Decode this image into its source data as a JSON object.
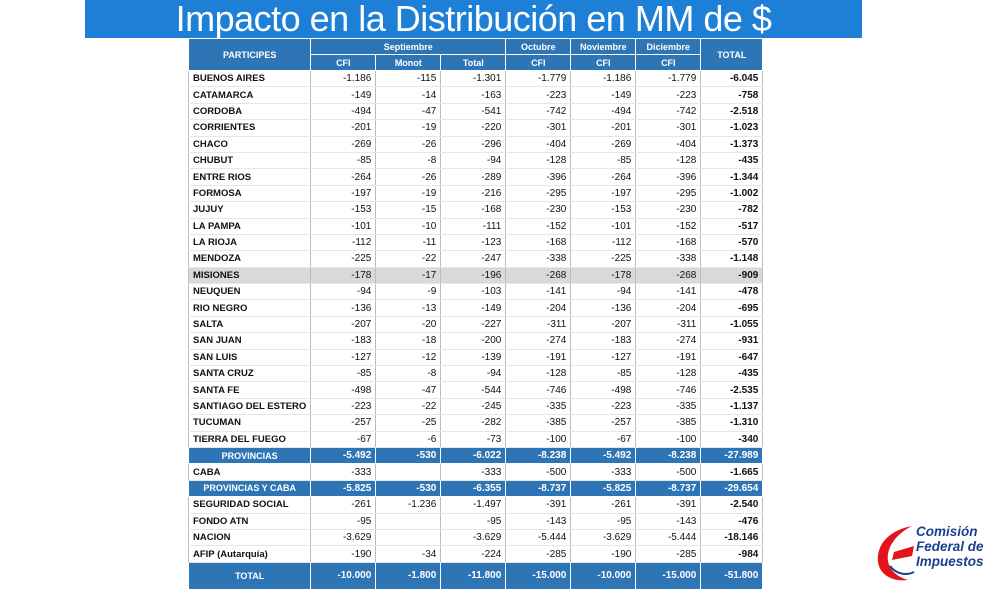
{
  "title": "Impacto en la Distribución en MM de $",
  "table": {
    "header": {
      "participes": "PARTICIPES",
      "months": [
        {
          "name": "Septiembre",
          "columns": [
            "CFI",
            "Monot",
            "Total"
          ]
        },
        {
          "name": "Octubre",
          "columns": [
            "CFI"
          ]
        },
        {
          "name": "Noviembre",
          "columns": [
            "CFI"
          ]
        },
        {
          "name": "Diciembre",
          "columns": [
            "CFI"
          ]
        }
      ],
      "total": "TOTAL"
    },
    "rows": [
      {
        "label": "BUENOS AIRES",
        "values": [
          "-1.186",
          "-115",
          "-1.301",
          "-1.779",
          "-1.186",
          "-1.779",
          "-6.045"
        ]
      },
      {
        "label": "CATAMARCA",
        "values": [
          "-149",
          "-14",
          "-163",
          "-223",
          "-149",
          "-223",
          "-758"
        ]
      },
      {
        "label": "CORDOBA",
        "values": [
          "-494",
          "-47",
          "-541",
          "-742",
          "-494",
          "-742",
          "-2.518"
        ]
      },
      {
        "label": "CORRIENTES",
        "values": [
          "-201",
          "-19",
          "-220",
          "-301",
          "-201",
          "-301",
          "-1.023"
        ]
      },
      {
        "label": "CHACO",
        "values": [
          "-269",
          "-26",
          "-296",
          "-404",
          "-269",
          "-404",
          "-1.373"
        ]
      },
      {
        "label": "CHUBUT",
        "values": [
          "-85",
          "-8",
          "-94",
          "-128",
          "-85",
          "-128",
          "-435"
        ]
      },
      {
        "label": "ENTRE RIOS",
        "values": [
          "-264",
          "-26",
          "-289",
          "-396",
          "-264",
          "-396",
          "-1.344"
        ]
      },
      {
        "label": "FORMOSA",
        "values": [
          "-197",
          "-19",
          "-216",
          "-295",
          "-197",
          "-295",
          "-1.002"
        ]
      },
      {
        "label": "JUJUY",
        "values": [
          "-153",
          "-15",
          "-168",
          "-230",
          "-153",
          "-230",
          "-782"
        ]
      },
      {
        "label": "LA PAMPA",
        "values": [
          "-101",
          "-10",
          "-111",
          "-152",
          "-101",
          "-152",
          "-517"
        ]
      },
      {
        "label": "LA RIOJA",
        "values": [
          "-112",
          "-11",
          "-123",
          "-168",
          "-112",
          "-168",
          "-570"
        ]
      },
      {
        "label": "MENDOZA",
        "values": [
          "-225",
          "-22",
          "-247",
          "-338",
          "-225",
          "-338",
          "-1.148"
        ]
      },
      {
        "label": "MISIONES",
        "values": [
          "-178",
          "-17",
          "-196",
          "-268",
          "-178",
          "-268",
          "-909"
        ]
      },
      {
        "label": "NEUQUEN",
        "values": [
          "-94",
          "-9",
          "-103",
          "-141",
          "-94",
          "-141",
          "-478"
        ]
      },
      {
        "label": "RIO NEGRO",
        "values": [
          "-136",
          "-13",
          "-149",
          "-204",
          "-136",
          "-204",
          "-695"
        ]
      },
      {
        "label": "SALTA",
        "values": [
          "-207",
          "-20",
          "-227",
          "-311",
          "-207",
          "-311",
          "-1.055"
        ]
      },
      {
        "label": "SAN JUAN",
        "values": [
          "-183",
          "-18",
          "-200",
          "-274",
          "-183",
          "-274",
          "-931"
        ]
      },
      {
        "label": "SAN LUIS",
        "values": [
          "-127",
          "-12",
          "-139",
          "-191",
          "-127",
          "-191",
          "-647"
        ]
      },
      {
        "label": "SANTA CRUZ",
        "values": [
          "-85",
          "-8",
          "-94",
          "-128",
          "-85",
          "-128",
          "-435"
        ]
      },
      {
        "label": "SANTA FE",
        "values": [
          "-498",
          "-47",
          "-544",
          "-746",
          "-498",
          "-746",
          "-2.535"
        ]
      },
      {
        "label": "SANTIAGO DEL ESTERO",
        "values": [
          "-223",
          "-22",
          "-245",
          "-335",
          "-223",
          "-335",
          "-1.137"
        ]
      },
      {
        "label": "TUCUMAN",
        "values": [
          "-257",
          "-25",
          "-282",
          "-385",
          "-257",
          "-385",
          "-1.310"
        ]
      },
      {
        "label": "TIERRA DEL FUEGO",
        "values": [
          "-67",
          "-6",
          "-73",
          "-100",
          "-67",
          "-100",
          "-340"
        ]
      },
      {
        "label": "PROVINCIAS",
        "values": [
          "-5.492",
          "-530",
          "-6.022",
          "-8.238",
          "-5.492",
          "-8.238",
          "-27.989"
        ]
      },
      {
        "label": "CABA",
        "values": [
          "-333",
          null,
          "-333",
          "-500",
          "-333",
          "-500",
          "-1.665"
        ]
      },
      {
        "label": "PROVINCIAS Y CABA",
        "values": [
          "-5.825",
          "-530",
          "-6.355",
          "-8.737",
          "-5.825",
          "-8.737",
          "-29.654"
        ]
      },
      {
        "label": "SEGURIDAD SOCIAL",
        "values": [
          "-261",
          "-1.236",
          "-1.497",
          "-391",
          "-261",
          "-391",
          "-2.540"
        ]
      },
      {
        "label": "FONDO ATN",
        "values": [
          "-95",
          null,
          "-95",
          "-143",
          "-95",
          "-143",
          "-476"
        ]
      },
      {
        "label": "NACION",
        "values": [
          "-3.629",
          null,
          "-3.629",
          "-5.444",
          "-3.629",
          "-5.444",
          "-18.146"
        ]
      },
      {
        "label": "AFIP (Autarquía)",
        "values": [
          "-190",
          "-34",
          "-224",
          "-285",
          "-190",
          "-285",
          "-984"
        ]
      },
      {
        "label": "TOTAL",
        "values": [
          "-10.000",
          "-1.800",
          "-11.800",
          "-15.000",
          "-10.000",
          "-15.000",
          "-51.800"
        ]
      }
    ]
  },
  "logo": {
    "lines": [
      "Comisión",
      "Federal de",
      "Impuestos"
    ]
  }
}
